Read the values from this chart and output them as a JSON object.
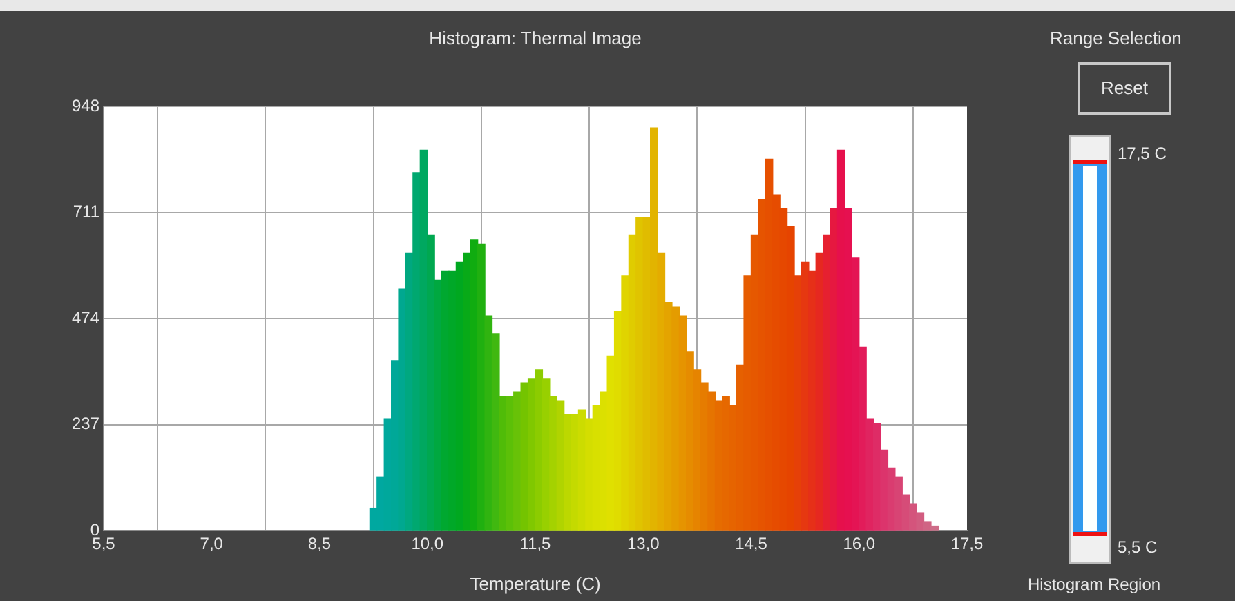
{
  "chart_data": {
    "type": "histogram",
    "title": "Histogram: Thermal Image",
    "xlabel": "Temperature (C)",
    "bins": [
      9.2,
      9.3,
      9.4,
      9.5,
      9.6,
      9.7,
      9.8,
      9.9,
      10.0,
      10.1,
      10.2,
      10.3,
      10.4,
      10.5,
      10.6,
      10.7,
      10.8,
      10.9,
      11.0,
      11.1,
      11.2,
      11.3,
      11.4,
      11.5,
      11.6,
      11.7,
      11.8,
      11.9,
      12.0,
      12.1,
      12.2,
      12.3,
      12.4,
      12.5,
      12.6,
      12.7,
      12.8,
      12.9,
      13.0,
      13.1,
      13.2,
      13.3,
      13.4,
      13.5,
      13.6,
      13.7,
      13.8,
      13.9,
      14.0,
      14.1,
      14.2,
      14.3,
      14.4,
      14.5,
      14.6,
      14.7,
      14.8,
      14.9,
      15.0,
      15.1,
      15.2,
      15.3,
      15.4,
      15.5,
      15.6,
      15.7,
      15.8,
      15.9,
      16.0,
      16.1,
      16.2,
      16.3,
      16.4,
      16.5,
      16.6,
      16.7,
      16.8,
      16.9,
      17.0,
      17.1
    ],
    "values": [
      50,
      120,
      250,
      380,
      540,
      620,
      800,
      850,
      660,
      560,
      580,
      580,
      600,
      620,
      650,
      640,
      480,
      440,
      300,
      300,
      310,
      330,
      340,
      360,
      340,
      300,
      290,
      260,
      260,
      270,
      250,
      280,
      310,
      390,
      490,
      570,
      660,
      700,
      700,
      900,
      620,
      510,
      500,
      480,
      400,
      360,
      330,
      310,
      290,
      300,
      280,
      370,
      570,
      660,
      740,
      830,
      750,
      720,
      680,
      570,
      600,
      580,
      620,
      660,
      720,
      850,
      720,
      610,
      410,
      250,
      240,
      180,
      140,
      120,
      80,
      60,
      40,
      20,
      10
    ],
    "colors": [
      "#00a8a0",
      "#00a8a0",
      "#00a89c",
      "#00a898",
      "#00a890",
      "#00a880",
      "#00a870",
      "#00a860",
      "#00a850",
      "#00a840",
      "#00a830",
      "#00a828",
      "#00a820",
      "#08aa18",
      "#10ac10",
      "#20b010",
      "#30b410",
      "#40b810",
      "#50bc08",
      "#5cc008",
      "#68c208",
      "#74c400",
      "#80c800",
      "#8ccc00",
      "#98d000",
      "#a4d200",
      "#b0d400",
      "#bcd800",
      "#c4da00",
      "#ccdc00",
      "#d4de00",
      "#d8e000",
      "#dce000",
      "#e0e000",
      "#e0dc00",
      "#e0d400",
      "#e0cc00",
      "#e0c400",
      "#e0bc00",
      "#e2b400",
      "#e4ac00",
      "#e4a400",
      "#e49c00",
      "#e69400",
      "#e68c00",
      "#e68400",
      "#e67c00",
      "#e67400",
      "#e66c00",
      "#e66800",
      "#e66400",
      "#e66000",
      "#e65c00",
      "#e65800",
      "#e65400",
      "#e65000",
      "#e64c00",
      "#e64800",
      "#e64400",
      "#e64008",
      "#e63810",
      "#e63018",
      "#e62820",
      "#e62030",
      "#e61840",
      "#e6104c",
      "#e61050",
      "#e41454",
      "#e21c5a",
      "#e02460",
      "#de2c66",
      "#dc346c",
      "#da3c70",
      "#d84474",
      "#d64c78",
      "#d4547c",
      "#d25c80",
      "#d06484",
      "#ce6c88"
    ],
    "xlim": [
      5.5,
      17.5
    ],
    "xticks": [
      {
        "value": 5.5,
        "label": "5,5"
      },
      {
        "value": 7.0,
        "label": "7,0"
      },
      {
        "value": 8.5,
        "label": "8,5"
      },
      {
        "value": 10.0,
        "label": "10,0"
      },
      {
        "value": 11.5,
        "label": "11,5"
      },
      {
        "value": 13.0,
        "label": "13,0"
      },
      {
        "value": 14.5,
        "label": "14,5"
      },
      {
        "value": 16.0,
        "label": "16,0"
      },
      {
        "value": 17.5,
        "label": "17,5"
      }
    ],
    "ylim": [
      0,
      948
    ],
    "yticks": [
      0,
      237,
      474,
      711,
      948
    ],
    "grid": true,
    "annotations": [
      "Range Selection",
      "Reset",
      "17,5 C",
      "5,5 C",
      "Histogram Region"
    ]
  }
}
